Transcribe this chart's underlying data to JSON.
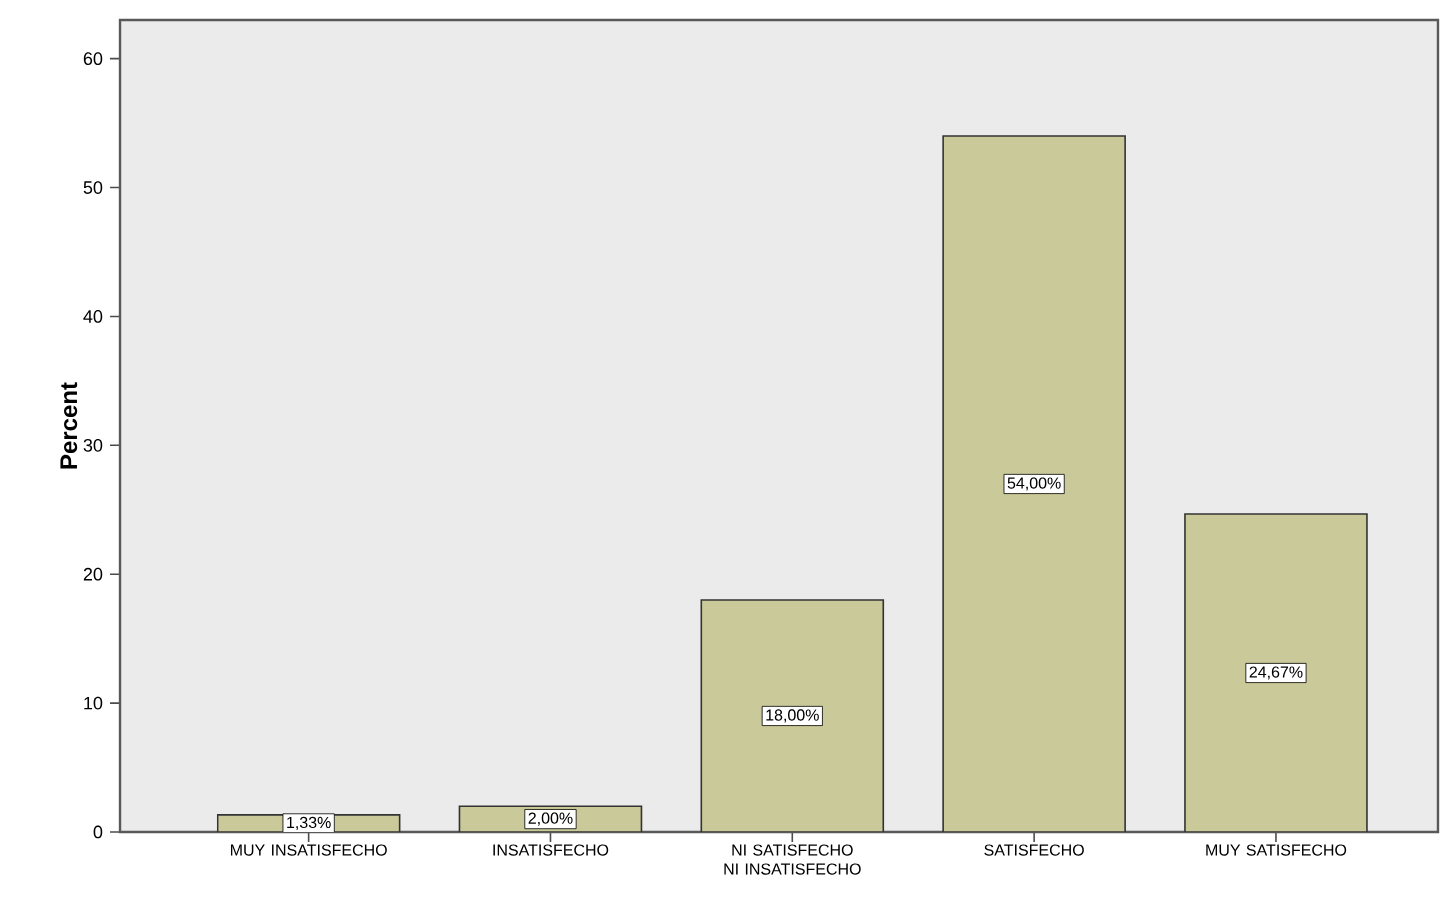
{
  "chart_data": {
    "type": "bar",
    "ylabel": "Percent",
    "categories": [
      "MUY INSATISFECHO",
      "INSATISFECHO",
      "NI SATISFECHO NI INSATISFECHO",
      "SATISFECHO",
      "MUY SATISFECHO"
    ],
    "values": [
      1.33,
      2.0,
      18.0,
      54.0,
      24.67
    ],
    "value_labels": [
      "1,33%",
      "2,00%",
      "18,00%",
      "54,00%",
      "24,67%"
    ],
    "color": "#c9c999",
    "ylim": [
      0,
      63
    ],
    "yticks": [
      0,
      10,
      20,
      30,
      40,
      50,
      60
    ]
  }
}
